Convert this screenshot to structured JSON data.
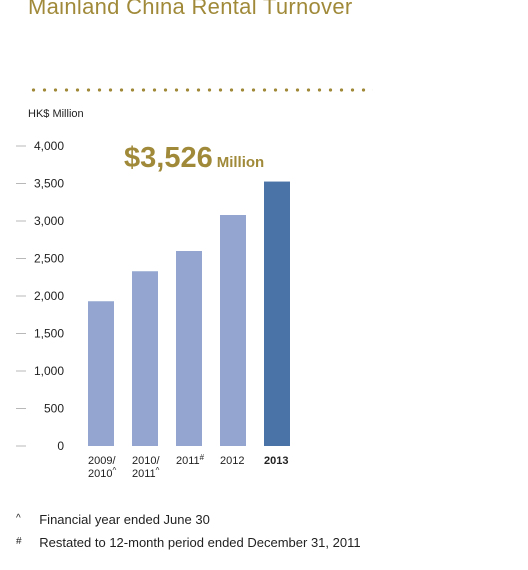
{
  "title": "Mainland China Rental Turnover",
  "colors": {
    "accent": "#a08a3a",
    "bar": "#94a6cf",
    "bar_highlight": "#4a74a8",
    "axis": "#b8b8b8"
  },
  "highlight": {
    "value_text": "$3,526",
    "unit_text": "Million"
  },
  "chart_data": {
    "type": "bar",
    "title": "Mainland China Rental Turnover",
    "ylabel": "HK$ Million",
    "xlabel": "",
    "ylim": [
      0,
      4000
    ],
    "yticks": [
      0,
      500,
      1000,
      1500,
      2000,
      2500,
      3000,
      3500,
      4000
    ],
    "ytick_labels": [
      "0",
      "500",
      "1,000",
      "1,500",
      "2,000",
      "2,500",
      "3,000",
      "3,500",
      "4,000"
    ],
    "grid": false,
    "categories": [
      {
        "lines": [
          "2009/",
          "2010^"
        ],
        "bold": false
      },
      {
        "lines": [
          "2010/",
          "2011^"
        ],
        "bold": false
      },
      {
        "lines": [
          "2011#"
        ],
        "bold": false
      },
      {
        "lines": [
          "2012"
        ],
        "bold": false
      },
      {
        "lines": [
          "2013"
        ],
        "bold": true
      }
    ],
    "values": [
      1930,
      2330,
      2600,
      3080,
      3526
    ],
    "highlighted_index": 4
  },
  "footnotes": [
    {
      "symbol": "^",
      "text": "Financial year ended June 30"
    },
    {
      "symbol": "#",
      "text": "Restated to 12-month period ended December 31, 2011"
    }
  ]
}
